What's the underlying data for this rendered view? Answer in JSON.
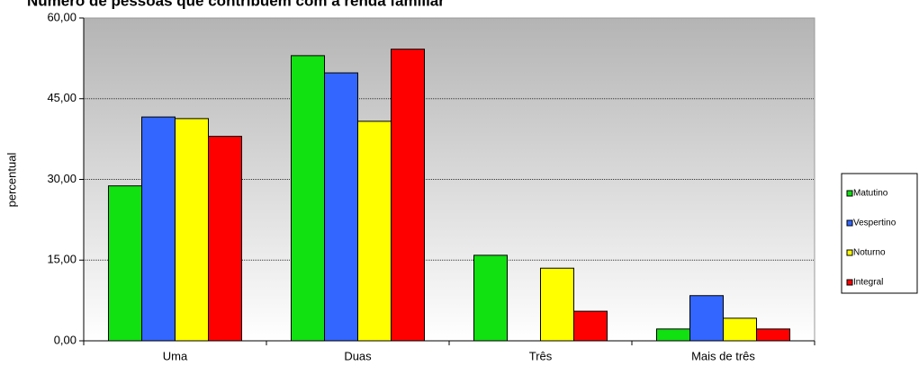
{
  "chart_data": {
    "type": "bar",
    "title": "Número de pessoas que contribuem com a renda familiar",
    "y_label": "percentual",
    "categories": [
      "Uma",
      "Duas",
      "Três",
      "Mais de três"
    ],
    "series": [
      {
        "name": "Matutino",
        "color": "#11e011",
        "values": [
          28.8,
          53.0,
          15.9,
          2.2
        ]
      },
      {
        "name": "Vespertino",
        "color": "#3366ff",
        "values": [
          41.6,
          49.8,
          0,
          8.4
        ]
      },
      {
        "name": "Noturno",
        "color": "#ffff00",
        "values": [
          41.3,
          40.8,
          13.5,
          4.2
        ]
      },
      {
        "name": "Integral",
        "color": "#ff0000",
        "values": [
          38.0,
          54.2,
          5.5,
          2.2
        ]
      }
    ],
    "ylim": [
      0,
      60
    ],
    "yticks": [
      {
        "value": 0,
        "label": "0,00"
      },
      {
        "value": 15,
        "label": "15,00"
      },
      {
        "value": 30,
        "label": "30,00"
      },
      {
        "value": 45,
        "label": "45,00"
      },
      {
        "value": 60,
        "label": "60,00"
      }
    ],
    "grid": true,
    "legend": "right"
  }
}
